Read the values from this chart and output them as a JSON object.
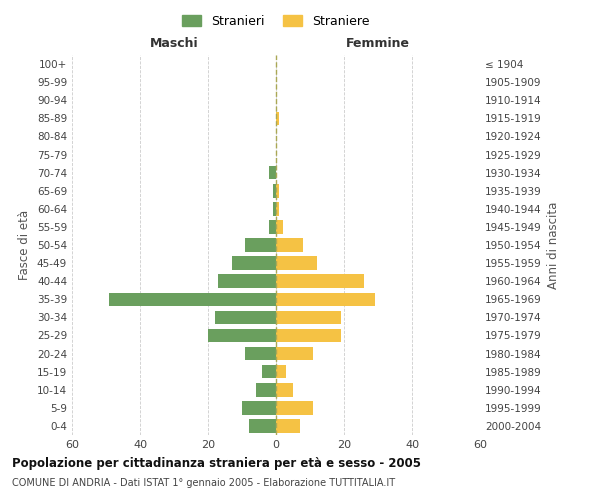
{
  "age_groups": [
    "0-4",
    "5-9",
    "10-14",
    "15-19",
    "20-24",
    "25-29",
    "30-34",
    "35-39",
    "40-44",
    "45-49",
    "50-54",
    "55-59",
    "60-64",
    "65-69",
    "70-74",
    "75-79",
    "80-84",
    "85-89",
    "90-94",
    "95-99",
    "100+"
  ],
  "birth_years": [
    "2000-2004",
    "1995-1999",
    "1990-1994",
    "1985-1989",
    "1980-1984",
    "1975-1979",
    "1970-1974",
    "1965-1969",
    "1960-1964",
    "1955-1959",
    "1950-1954",
    "1945-1949",
    "1940-1944",
    "1935-1939",
    "1930-1934",
    "1925-1929",
    "1920-1924",
    "1915-1919",
    "1910-1914",
    "1905-1909",
    "≤ 1904"
  ],
  "males": [
    8,
    10,
    6,
    4,
    9,
    20,
    18,
    49,
    17,
    13,
    9,
    2,
    1,
    1,
    2,
    0,
    0,
    0,
    0,
    0,
    0
  ],
  "females": [
    7,
    11,
    5,
    3,
    11,
    19,
    19,
    29,
    26,
    12,
    8,
    2,
    1,
    1,
    0,
    0,
    0,
    1,
    0,
    0,
    0
  ],
  "male_color": "#6a9f5e",
  "female_color": "#f5c244",
  "background_color": "#ffffff",
  "grid_color": "#cccccc",
  "title": "Popolazione per cittadinanza straniera per età e sesso - 2005",
  "subtitle": "COMUNE DI ANDRIA - Dati ISTAT 1° gennaio 2005 - Elaborazione TUTTITALIA.IT",
  "xlabel_left": "Maschi",
  "xlabel_right": "Femmine",
  "ylabel_left": "Fasce di età",
  "ylabel_right": "Anni di nascita",
  "legend_male": "Stranieri",
  "legend_female": "Straniere",
  "xlim": 60,
  "bar_height": 0.75
}
